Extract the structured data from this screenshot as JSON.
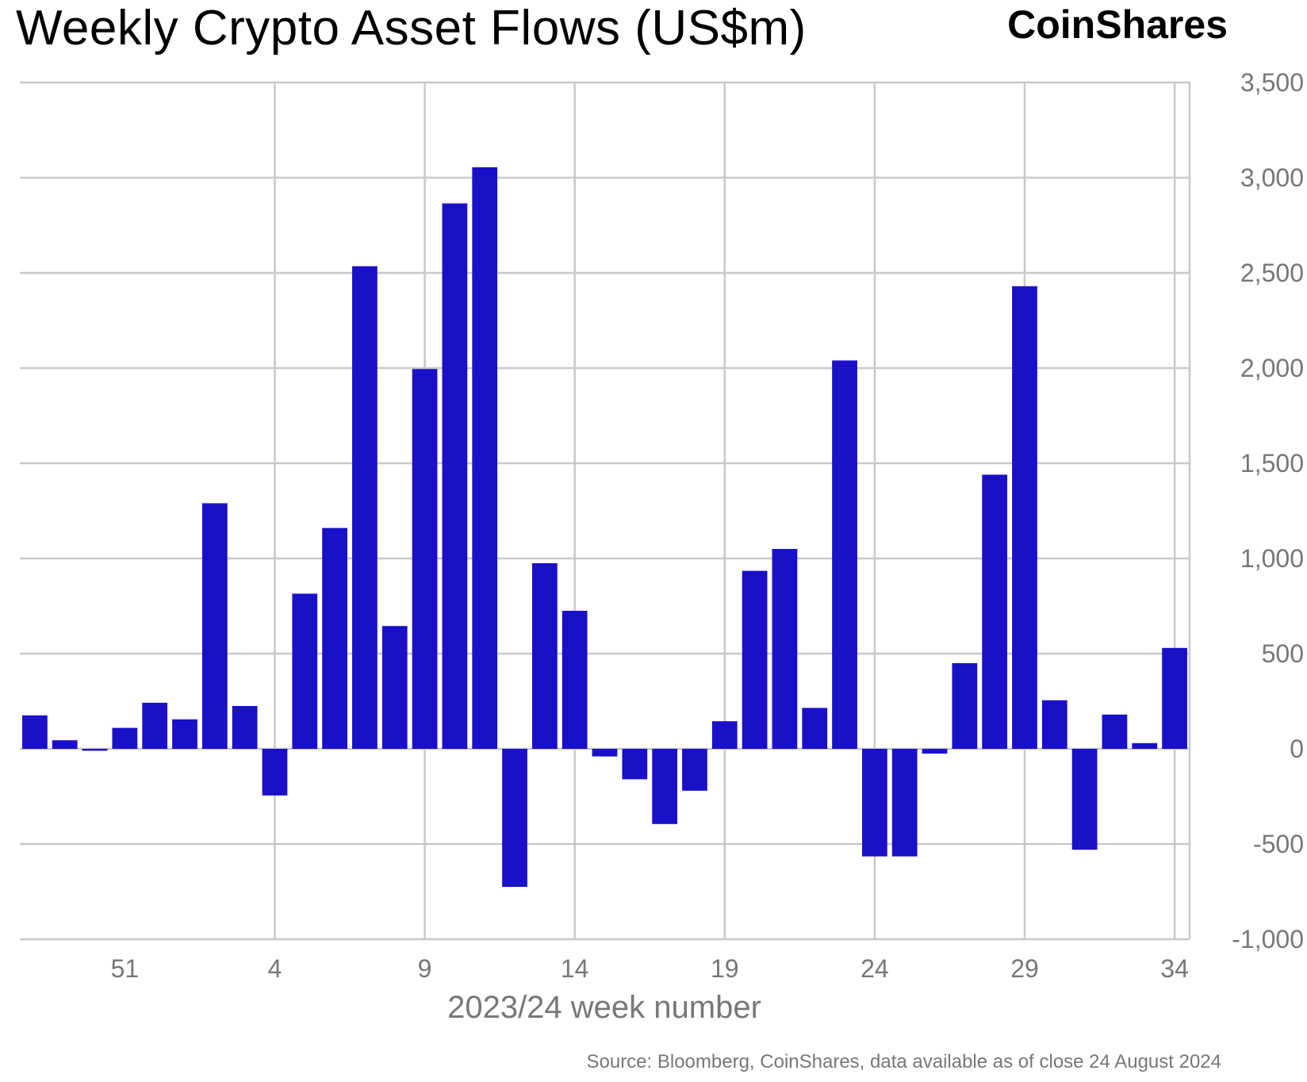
{
  "title": "Weekly Crypto Asset Flows (US$m)",
  "brand": "CoinShares",
  "source": "Source: Bloomberg, CoinShares, data available as of close 24 August 2024",
  "colors": {
    "bar": "#1a10c8",
    "grid": "#c8c8c8",
    "tick_text": "#777777"
  },
  "chart_data": {
    "type": "bar",
    "title": "Weekly Crypto Asset Flows (US$m)",
    "xlabel": "2023/24 week number",
    "ylabel": "",
    "ylim": [
      -1000,
      3500
    ],
    "yticks": [
      3500,
      3000,
      2500,
      2000,
      1500,
      1000,
      500,
      0,
      -500,
      -1000
    ],
    "ytick_labels": [
      "3,500",
      "3,000",
      "2,500",
      "2,000",
      "1,500",
      "1,000",
      "500",
      "0",
      "-500",
      "-1,000"
    ],
    "xtick_labels": [
      "51",
      "4",
      "9",
      "14",
      "19",
      "24",
      "29",
      "34"
    ],
    "grid": true,
    "y_axis_side": "right",
    "categories": [
      "48",
      "49",
      "50",
      "51",
      "52",
      "1",
      "2",
      "3",
      "4",
      "5",
      "6",
      "7",
      "8",
      "9",
      "10",
      "11",
      "12",
      "13",
      "14",
      "15",
      "16",
      "17",
      "18",
      "19",
      "20",
      "21",
      "22",
      "23",
      "24",
      "25",
      "26",
      "27",
      "28",
      "29",
      "30",
      "31",
      "32",
      "33",
      "34"
    ],
    "values": [
      176,
      45,
      -10,
      110,
      242,
      155,
      1290,
      225,
      -245,
      815,
      1160,
      2535,
      645,
      1995,
      2865,
      3055,
      -725,
      975,
      725,
      -40,
      -160,
      -395,
      -220,
      145,
      935,
      1050,
      215,
      2040,
      -565,
      -565,
      -25,
      450,
      1440,
      2430,
      255,
      -530,
      180,
      30,
      530
    ]
  }
}
